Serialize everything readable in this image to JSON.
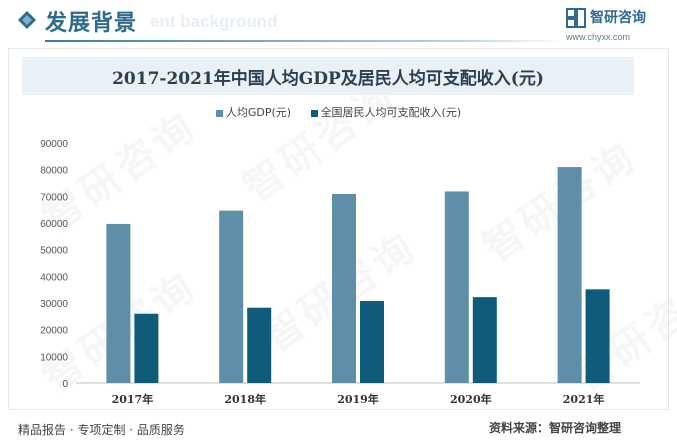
{
  "header": {
    "title": "发展背景",
    "subtitle": "ent background",
    "logo_name": "智研咨询",
    "logo_url": "www.chyxx.com",
    "accent_color": "#2f6b8f"
  },
  "watermark": "智研咨询",
  "chart_data": {
    "type": "bar",
    "title": "2017-2021年中国人均GDP及居民人均可支配收入(元)",
    "categories": [
      "2017年",
      "2018年",
      "2019年",
      "2020年",
      "2021年"
    ],
    "series": [
      {
        "name": "人均GDP(元)",
        "color": "#5f8ea8",
        "values": [
          59660,
          64644,
          70892,
          71828,
          80976
        ]
      },
      {
        "name": "全国居民人均可支配收入(元)",
        "color": "#0f5c7a",
        "values": [
          25974,
          28228,
          30733,
          32189,
          35128
        ]
      }
    ],
    "ylim": [
      0,
      90000
    ],
    "yticks": [
      "0",
      "10000",
      "20000",
      "30000",
      "40000",
      "50000",
      "60000",
      "70000",
      "80000",
      "90000"
    ],
    "xlabel": "",
    "ylabel": "",
    "legend_position": "top",
    "grid": false
  },
  "footer": {
    "left": "精品报告 · 专项定制 · 品质服务",
    "right": "资料来源：智研咨询整理"
  }
}
